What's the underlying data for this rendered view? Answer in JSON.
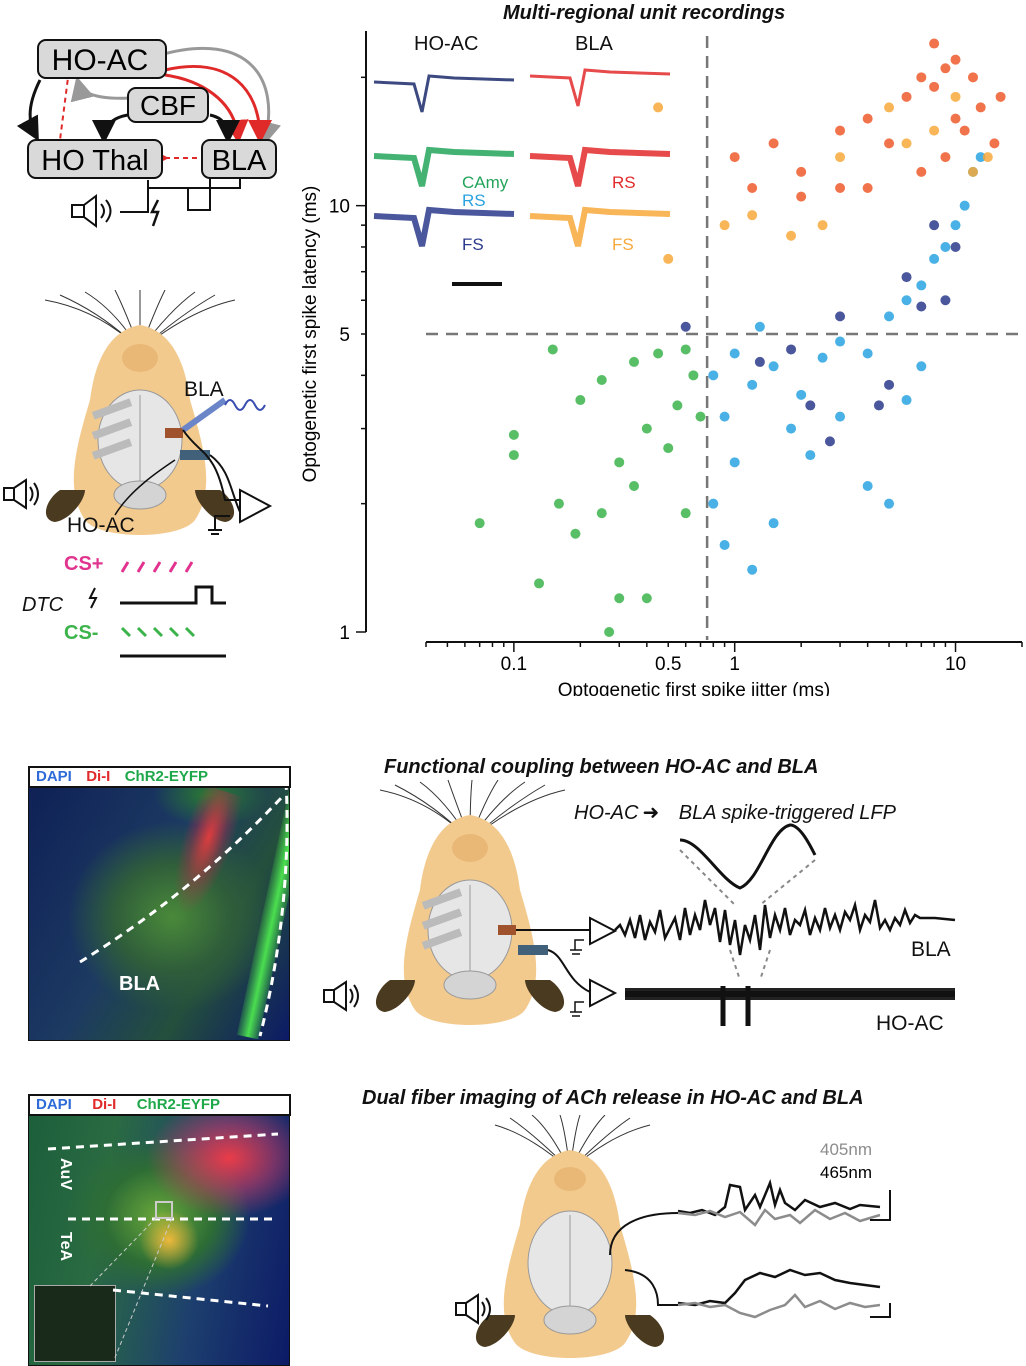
{
  "circuit": {
    "nodes": [
      "HO-AC",
      "CBF",
      "HO Thal",
      "BLA"
    ],
    "speaker_icon": "speaker-icon",
    "shock_icon": "lightning-icon"
  },
  "setup": {
    "bla_label": "BLA",
    "hoac_label": "HO-AC",
    "cs_plus": "CS+",
    "dtc": "DTC",
    "cs_minus": "CS-"
  },
  "scatter": {
    "title": "Multi-regional unit recordings",
    "xlabel": "Optogenetic first spike jitter (ms)",
    "ylabel": "Optogenetic first spike latency (ms)",
    "xticks": [
      "0.1",
      "0.5",
      "1",
      "10"
    ],
    "yticks": [
      "1",
      "5",
      "10"
    ],
    "inset_hoac": "HO-AC",
    "inset_bla": "BLA",
    "label_camy": "CAmy",
    "label_rs_left": "RS",
    "label_fs_left": "FS",
    "label_rs_right": "RS",
    "label_fs_right": "FS"
  },
  "chart_data": {
    "type": "scatter",
    "title": "Multi-regional unit recordings",
    "xlabel": "Optogenetic first spike jitter (ms)",
    "ylabel": "Optogenetic first spike latency (ms)",
    "xscale": "log",
    "yscale": "log",
    "xlim": [
      0.04,
      20
    ],
    "ylim": [
      1,
      25
    ],
    "thresholds": {
      "x": 0.75,
      "y": 5
    },
    "series": [
      {
        "name": "CAmy",
        "color": "#3cb44b",
        "points": [
          [
            0.07,
            1.8
          ],
          [
            0.1,
            2.9
          ],
          [
            0.1,
            2.6
          ],
          [
            0.13,
            1.3
          ],
          [
            0.16,
            2
          ],
          [
            0.19,
            1.7
          ],
          [
            0.25,
            1.9
          ],
          [
            0.3,
            1.2
          ],
          [
            0.35,
            2.2
          ],
          [
            0.4,
            1.2
          ],
          [
            0.5,
            2.7
          ],
          [
            0.55,
            3.4
          ],
          [
            0.6,
            1.9
          ],
          [
            0.65,
            4
          ],
          [
            0.7,
            3.2
          ],
          [
            0.45,
            4.5
          ],
          [
            0.35,
            4.3
          ],
          [
            0.25,
            3.9
          ],
          [
            0.2,
            3.5
          ],
          [
            0.15,
            4.6
          ],
          [
            0.3,
            2.5
          ],
          [
            0.6,
            4.6
          ],
          [
            0.27,
            1
          ],
          [
            0.4,
            3
          ]
        ]
      },
      {
        "name": "HO-AC RS",
        "color": "#29a3e0",
        "points": [
          [
            0.8,
            4
          ],
          [
            1,
            4.5
          ],
          [
            1.2,
            3.8
          ],
          [
            1.5,
            4.2
          ],
          [
            2,
            3.6
          ],
          [
            2.5,
            4.4
          ],
          [
            3,
            4.8
          ],
          [
            1.3,
            5.2
          ],
          [
            0.9,
            3.2
          ],
          [
            1.8,
            3
          ],
          [
            4,
            4.5
          ],
          [
            5,
            5.5
          ],
          [
            6,
            6
          ],
          [
            7,
            6.5
          ],
          [
            8,
            7.5
          ],
          [
            9,
            8
          ],
          [
            10,
            9
          ],
          [
            11,
            10
          ],
          [
            12,
            12
          ],
          [
            13,
            13
          ],
          [
            1,
            2.5
          ],
          [
            0.8,
            2
          ],
          [
            0.9,
            1.6
          ],
          [
            1.2,
            1.4
          ],
          [
            1.5,
            1.8
          ],
          [
            2.2,
            2.6
          ],
          [
            3,
            3.2
          ],
          [
            4,
            2.2
          ],
          [
            5,
            2
          ],
          [
            6,
            3.5
          ],
          [
            7,
            4.2
          ]
        ]
      },
      {
        "name": "HO-AC FS",
        "color": "#2b3a8c",
        "points": [
          [
            0.6,
            5.2
          ],
          [
            1.3,
            4.3
          ],
          [
            1.8,
            4.6
          ],
          [
            2.2,
            3.4
          ],
          [
            3,
            5.5
          ],
          [
            4.5,
            3.4
          ],
          [
            6,
            6.8
          ],
          [
            7,
            5.8
          ],
          [
            8,
            9
          ],
          [
            9,
            6
          ],
          [
            5,
            3.8
          ],
          [
            2.7,
            2.8
          ],
          [
            10,
            8
          ]
        ]
      },
      {
        "name": "BLA RS",
        "color": "#ef5a2b",
        "points": [
          [
            1,
            13
          ],
          [
            1.5,
            14
          ],
          [
            2,
            12
          ],
          [
            3,
            15
          ],
          [
            4,
            16
          ],
          [
            5,
            14
          ],
          [
            6,
            18
          ],
          [
            7,
            20
          ],
          [
            8,
            19
          ],
          [
            9,
            21
          ],
          [
            10,
            22
          ],
          [
            12,
            20
          ],
          [
            13,
            17
          ],
          [
            11,
            15
          ],
          [
            9,
            13
          ],
          [
            7,
            12
          ],
          [
            4,
            11
          ],
          [
            3,
            11
          ],
          [
            2,
            10.5
          ],
          [
            1.2,
            11
          ],
          [
            15,
            14
          ],
          [
            16,
            18
          ],
          [
            8,
            24
          ],
          [
            10,
            16
          ]
        ]
      },
      {
        "name": "BLA FS",
        "color": "#f7a93b",
        "points": [
          [
            0.5,
            7.5
          ],
          [
            0.9,
            9
          ],
          [
            1.2,
            9.5
          ],
          [
            1.8,
            8.5
          ],
          [
            2.5,
            9
          ],
          [
            3,
            13
          ],
          [
            5,
            17
          ],
          [
            6,
            14
          ],
          [
            8,
            15
          ],
          [
            10,
            18
          ],
          [
            12,
            12
          ],
          [
            14,
            13
          ],
          [
            0.45,
            17
          ]
        ]
      }
    ]
  },
  "histology1": {
    "dapi": "DAPI",
    "dii": "Di-I",
    "chr2": "ChR2-EYFP",
    "region": "BLA"
  },
  "coupling": {
    "title": "Functional coupling between HO-AC and BLA",
    "subtitle_left": "HO-AC",
    "subtitle_right": "BLA spike-triggered LFP",
    "trace_bla": "BLA",
    "trace_hoac": "HO-AC"
  },
  "histology2": {
    "dapi": "DAPI",
    "dii": "Di-I",
    "chr2": "ChR2-EYFP",
    "region_top": "AuV",
    "region_bottom": "TeA"
  },
  "imaging": {
    "title": "Dual fiber imaging of ACh release in HO-AC and BLA",
    "legend_405": "405nm",
    "legend_465": "465nm",
    "color_405": "#8c8c8c",
    "color_465": "#000000"
  }
}
